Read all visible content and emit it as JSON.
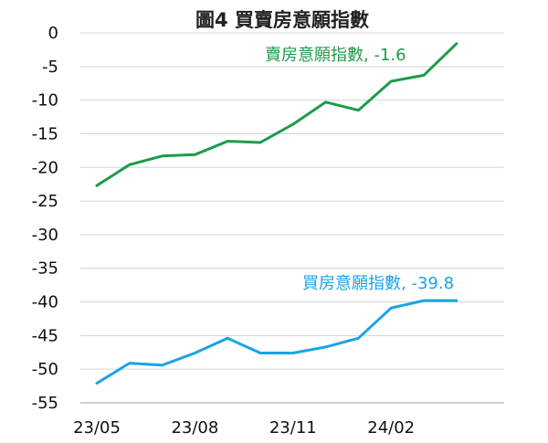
{
  "chart_data": {
    "type": "line",
    "title": "圖4  買賣房意願指數",
    "xlabel": "",
    "ylabel": "",
    "ylim": [
      -55,
      0
    ],
    "yticks": [
      0,
      -5,
      -10,
      -15,
      -20,
      -25,
      -30,
      -35,
      -40,
      -45,
      -50,
      -55
    ],
    "x": [
      "23/05",
      "23/06",
      "23/07",
      "23/08",
      "23/09",
      "23/10",
      "23/11",
      "23/12",
      "24/01",
      "24/02",
      "24/03",
      "24/04"
    ],
    "xtick_labels": [
      "23/05",
      "23/08",
      "23/11",
      "24/02"
    ],
    "grid": true,
    "series": [
      {
        "name": "賣房意願指數",
        "label": "賣房意願指數, -1.6",
        "color": "#1e9a4b",
        "values": [
          -22.7,
          -19.6,
          -18.3,
          -18.1,
          -16.1,
          -16.3,
          -13.6,
          -10.3,
          -11.5,
          -7.2,
          -6.3,
          -1.6
        ]
      },
      {
        "name": "買房意願指數",
        "label": "買房意願指數, -39.8",
        "color": "#1aa3e8",
        "values": [
          -52.1,
          -49.1,
          -49.4,
          -47.6,
          -45.4,
          -47.6,
          -47.6,
          -46.7,
          -45.4,
          -40.9,
          -39.8,
          -39.8
        ]
      }
    ]
  }
}
